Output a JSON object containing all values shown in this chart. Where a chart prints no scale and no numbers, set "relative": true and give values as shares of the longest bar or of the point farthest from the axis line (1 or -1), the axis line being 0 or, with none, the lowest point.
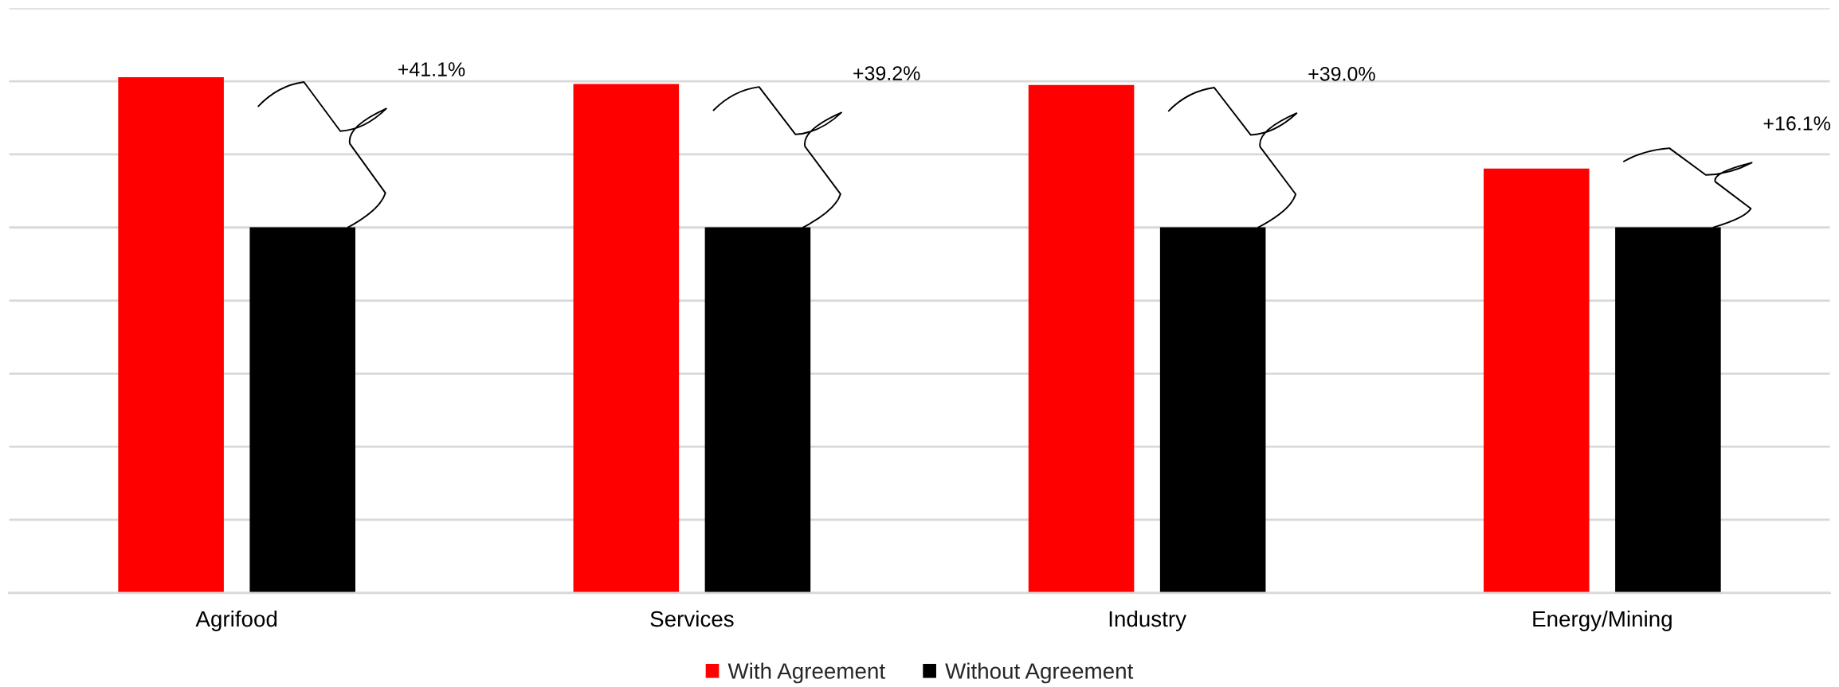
{
  "chart_data": {
    "type": "bar",
    "relative": true,
    "categories": [
      "Agrifood",
      "Services",
      "Industry",
      "Energy/Mining"
    ],
    "series": [
      {
        "name": "With Agreement",
        "color": "#ff0000",
        "values": [
          1,
          0.987,
          0.985,
          0.823
        ]
      },
      {
        "name": "Without Agreement",
        "color": "#000000",
        "values": [
          0.709,
          0.709,
          0.709,
          0.709
        ]
      }
    ],
    "annotations": [
      "+41.1%",
      "+39.2%",
      "+39.0%",
      "+16.1%"
    ],
    "grid": "y",
    "legend": "bottom"
  }
}
